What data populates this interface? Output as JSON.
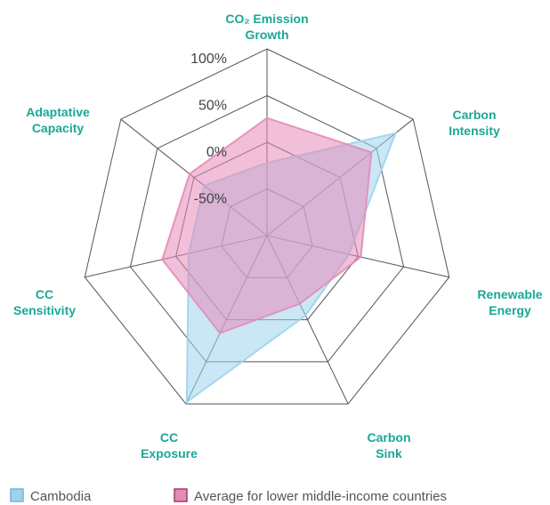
{
  "chart_data": {
    "type": "radar",
    "categories": [
      [
        "CO₂ Emission",
        "Growth"
      ],
      [
        "Carbon",
        "Intensity"
      ],
      [
        "Renewable",
        "Energy"
      ],
      [
        "Carbon",
        "Sink"
      ],
      [
        "CC",
        "Exposure"
      ],
      [
        "CC",
        "Sensitivity"
      ],
      [
        "Adaptative",
        "Capacity"
      ]
    ],
    "series": [
      {
        "name": "Cambodia",
        "color": "#9fd3ec",
        "values": [
          -22,
          76,
          -10,
          -5,
          98,
          -14,
          -14
        ]
      },
      {
        "name": "Average for lower middle-income countries",
        "color": "#e58bb8",
        "values": [
          26,
          43,
          3,
          -19,
          16,
          15,
          6
        ]
      }
    ],
    "ylim": [
      -100,
      100
    ],
    "yticks": [
      {
        "value": -50,
        "label": "-50%"
      },
      {
        "value": 0,
        "label": "0%"
      },
      {
        "value": 50,
        "label": "50%"
      },
      {
        "value": 100,
        "label": "100%"
      }
    ]
  }
}
